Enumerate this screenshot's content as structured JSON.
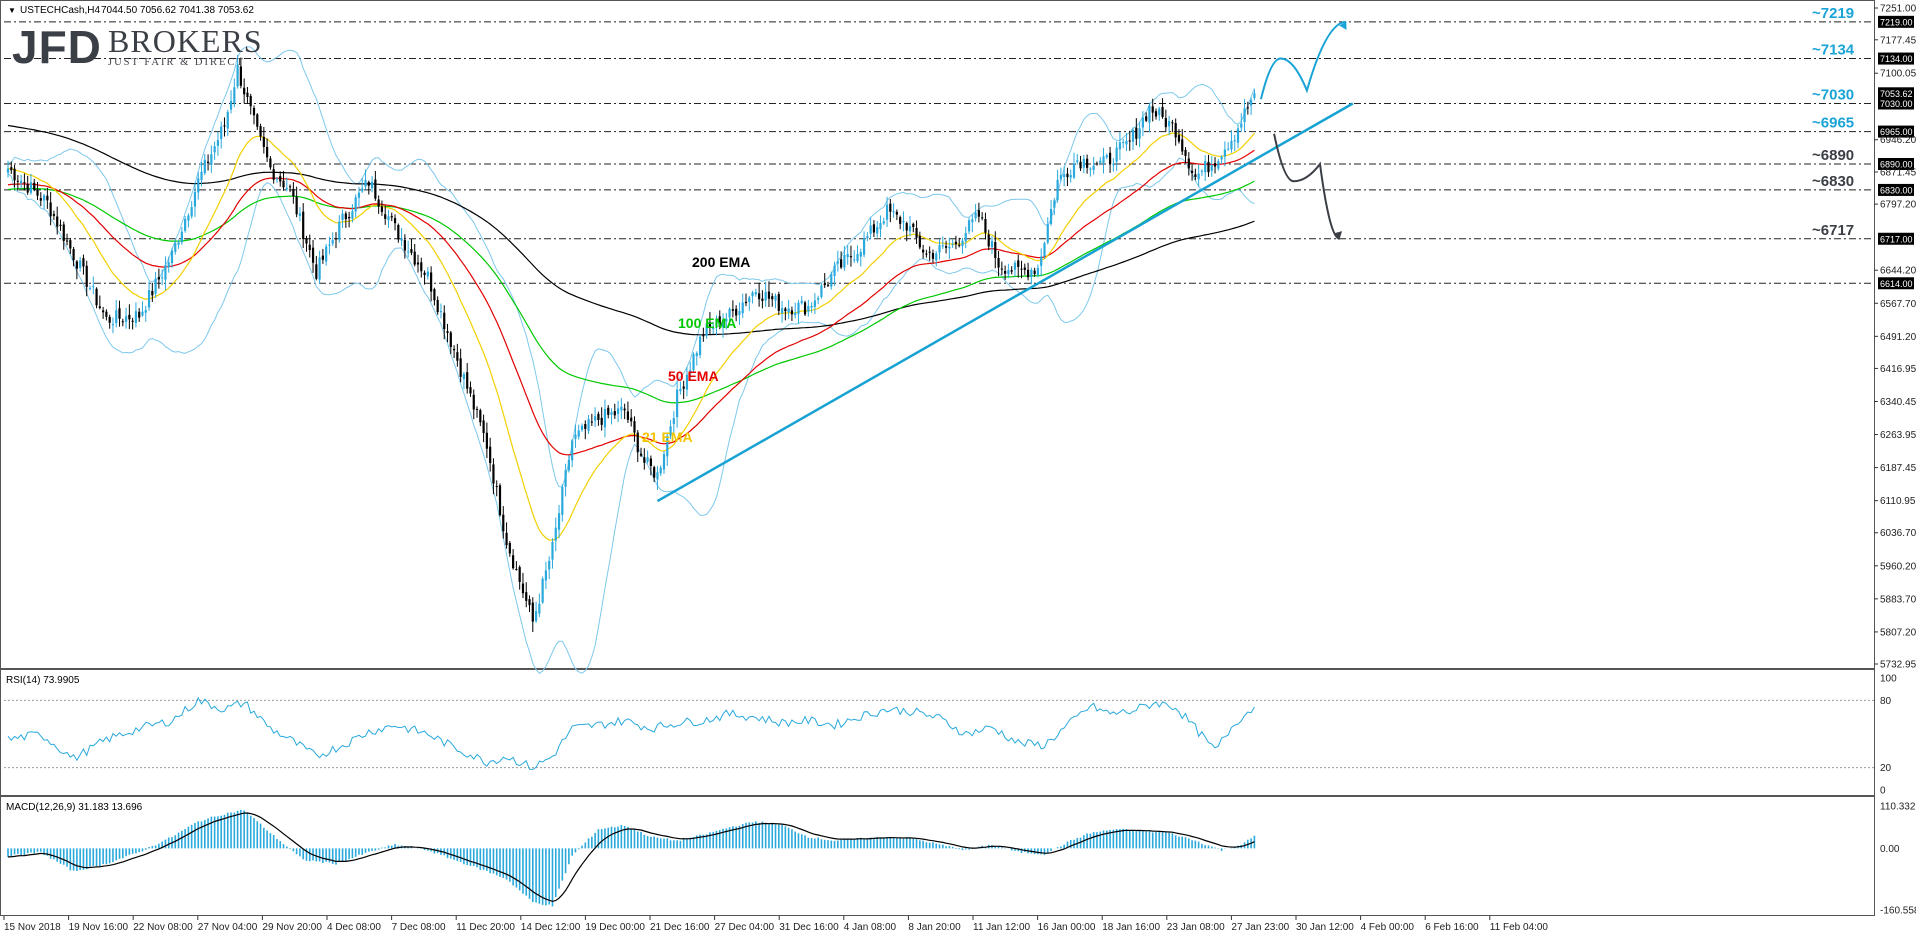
{
  "header": {
    "symbol_text": "USTECHCash,H4",
    "ohlc_text": "7044.50 7056.62 7041.38 7053.62"
  },
  "logo": {
    "brand": "JFD",
    "brand2": "BROKERS",
    "tagline": "JUST FAIR & DIRECT"
  },
  "colors": {
    "candle_up": "#29a9dc",
    "candle_down": "#000000",
    "ema21": "#f2d000",
    "ema50": "#e30000",
    "ema100": "#00c800",
    "ema200": "#000000",
    "bollinger": "#7ec8ec",
    "trendline": "#17a2d3",
    "level_blue": "#1aa3d6",
    "level_dark": "#3b3f46"
  },
  "chart_data": [
    {
      "type": "candlestick",
      "title": "USTECHCash,H4",
      "ylim": [
        5732.95,
        7251.0
      ],
      "y_ticks": [
        "7251.00",
        "7219.00",
        "7177.45",
        "7134.00",
        "7100.05",
        "7053.62",
        "7030.00",
        "6965.00",
        "6946.20",
        "6890.00",
        "6871.45",
        "6830.00",
        "6797.20",
        "6717.00",
        "6644.20",
        "6614.00",
        "6567.70",
        "6491.20",
        "6416.95",
        "6340.45",
        "6263.95",
        "6187.45",
        "6110.95",
        "6036.70",
        "5960.20",
        "5883.70",
        "5807.20",
        "5732.95"
      ],
      "x_labels": [
        "15 Nov 2018",
        "19 Nov 16:00",
        "22 Nov 08:00",
        "27 Nov 04:00",
        "29 Nov 20:00",
        "4 Dec 08:00",
        "7 Dec 08:00",
        "11 Dec 20:00",
        "14 Dec 12:00",
        "19 Dec 00:00",
        "21 Dec 16:00",
        "27 Dec 04:00",
        "31 Dec 16:00",
        "4 Jan 08:00",
        "8 Jan 20:00",
        "11 Jan 12:00",
        "16 Jan 00:00",
        "18 Jan 16:00",
        "23 Jan 08:00",
        "27 Jan 23:00",
        "30 Jan 12:00",
        "4 Feb 00:00",
        "6 Feb 16:00",
        "11 Feb 04:00"
      ],
      "price_anchors": [
        [
          0,
          6880
        ],
        [
          12,
          6800
        ],
        [
          22,
          6650
        ],
        [
          30,
          6530
        ],
        [
          40,
          6540
        ],
        [
          50,
          6680
        ],
        [
          58,
          6850
        ],
        [
          66,
          6980
        ],
        [
          70,
          7110
        ],
        [
          76,
          6960
        ],
        [
          80,
          6880
        ],
        [
          86,
          6830
        ],
        [
          94,
          6640
        ],
        [
          102,
          6760
        ],
        [
          110,
          6850
        ],
        [
          118,
          6740
        ],
        [
          128,
          6630
        ],
        [
          136,
          6460
        ],
        [
          146,
          6240
        ],
        [
          152,
          6020
        ],
        [
          160,
          5830
        ],
        [
          166,
          6000
        ],
        [
          172,
          6250
        ],
        [
          180,
          6300
        ],
        [
          188,
          6320
        ],
        [
          194,
          6200
        ],
        [
          198,
          6170
        ],
        [
          204,
          6350
        ],
        [
          212,
          6500
        ],
        [
          220,
          6540
        ],
        [
          228,
          6600
        ],
        [
          236,
          6560
        ],
        [
          244,
          6560
        ],
        [
          252,
          6640
        ],
        [
          260,
          6700
        ],
        [
          268,
          6780
        ],
        [
          274,
          6750
        ],
        [
          280,
          6680
        ],
        [
          288,
          6700
        ],
        [
          296,
          6770
        ],
        [
          302,
          6660
        ],
        [
          308,
          6640
        ],
        [
          314,
          6650
        ],
        [
          320,
          6850
        ],
        [
          326,
          6900
        ],
        [
          334,
          6890
        ],
        [
          342,
          6940
        ],
        [
          348,
          7020
        ],
        [
          356,
          6970
        ],
        [
          362,
          6860
        ],
        [
          368,
          6900
        ],
        [
          374,
          6960
        ],
        [
          380,
          7053
        ]
      ],
      "levels": [
        {
          "label": "~7219",
          "value": 7219,
          "color": "blue",
          "axis_tag": "7219.00"
        },
        {
          "label": "~7134",
          "value": 7134,
          "color": "blue",
          "axis_tag": "7134.00"
        },
        {
          "label": "~7030",
          "value": 7030,
          "color": "blue",
          "axis_tag": "7030.00"
        },
        {
          "label": "~6965",
          "value": 6965,
          "color": "blue",
          "axis_tag": "6965.00"
        },
        {
          "label": "~6890",
          "value": 6890,
          "color": "dark",
          "axis_tag": "6890.00"
        },
        {
          "label": "~6830",
          "value": 6830,
          "color": "dark",
          "axis_tag": "6830.00"
        },
        {
          "label": "~6717",
          "value": 6717,
          "color": "dark",
          "axis_tag": "6717.00"
        },
        {
          "label": "",
          "value": 6614,
          "color": "dark",
          "axis_tag": "6614.00"
        }
      ],
      "current_price_tag": "7053.62",
      "ema_labels": [
        "200 EMA",
        "100 EMA",
        "50 EMA",
        "21 EMA"
      ],
      "trendline": {
        "from": [
          198,
          6110
        ],
        "to": [
          410,
          7030
        ]
      },
      "projection_up": {
        "points": [
          [
            382,
            7040
          ],
          [
            388,
            7134
          ],
          [
            396,
            7060
          ],
          [
            408,
            7219
          ]
        ]
      },
      "projection_down": {
        "points": [
          [
            386,
            6960
          ],
          [
            392,
            6850
          ],
          [
            400,
            6890
          ],
          [
            406,
            6717
          ]
        ]
      }
    },
    {
      "type": "line",
      "title": "RSI(14) 73.9905",
      "ylim": [
        0,
        100
      ],
      "y_ticks": [
        "100",
        "80",
        "20",
        "0"
      ],
      "levels": [
        80,
        20
      ],
      "anchors": [
        [
          0,
          45
        ],
        [
          10,
          50
        ],
        [
          20,
          28
        ],
        [
          30,
          45
        ],
        [
          40,
          55
        ],
        [
          50,
          62
        ],
        [
          58,
          80
        ],
        [
          66,
          72
        ],
        [
          72,
          78
        ],
        [
          80,
          55
        ],
        [
          86,
          45
        ],
        [
          94,
          30
        ],
        [
          102,
          40
        ],
        [
          110,
          52
        ],
        [
          118,
          58
        ],
        [
          128,
          50
        ],
        [
          136,
          38
        ],
        [
          146,
          25
        ],
        [
          152,
          30
        ],
        [
          160,
          20
        ],
        [
          166,
          30
        ],
        [
          172,
          55
        ],
        [
          180,
          58
        ],
        [
          188,
          62
        ],
        [
          196,
          55
        ],
        [
          204,
          60
        ],
        [
          212,
          62
        ],
        [
          220,
          68
        ],
        [
          228,
          65
        ],
        [
          236,
          60
        ],
        [
          244,
          62
        ],
        [
          252,
          58
        ],
        [
          260,
          66
        ],
        [
          268,
          72
        ],
        [
          276,
          70
        ],
        [
          284,
          64
        ],
        [
          292,
          50
        ],
        [
          300,
          56
        ],
        [
          308,
          42
        ],
        [
          316,
          40
        ],
        [
          324,
          60
        ],
        [
          330,
          75
        ],
        [
          336,
          68
        ],
        [
          342,
          70
        ],
        [
          350,
          78
        ],
        [
          356,
          74
        ],
        [
          362,
          55
        ],
        [
          368,
          35
        ],
        [
          374,
          60
        ],
        [
          380,
          74
        ]
      ]
    },
    {
      "type": "histogram",
      "title": "MACD(12,26,9) 31.183 13.696",
      "ylim": [
        -160.558,
        110.332
      ],
      "y_ticks": [
        "110.332",
        "0.00",
        "-160.558"
      ],
      "anchors": [
        [
          0,
          -20
        ],
        [
          10,
          -10
        ],
        [
          20,
          -60
        ],
        [
          30,
          -40
        ],
        [
          40,
          -10
        ],
        [
          50,
          30
        ],
        [
          58,
          70
        ],
        [
          66,
          90
        ],
        [
          72,
          100
        ],
        [
          80,
          40
        ],
        [
          90,
          -30
        ],
        [
          100,
          -40
        ],
        [
          110,
          -10
        ],
        [
          118,
          10
        ],
        [
          128,
          -5
        ],
        [
          136,
          -30
        ],
        [
          146,
          -60
        ],
        [
          152,
          -80
        ],
        [
          160,
          -140
        ],
        [
          166,
          -150
        ],
        [
          172,
          -20
        ],
        [
          180,
          50
        ],
        [
          188,
          60
        ],
        [
          196,
          30
        ],
        [
          204,
          20
        ],
        [
          212,
          35
        ],
        [
          220,
          55
        ],
        [
          228,
          70
        ],
        [
          236,
          60
        ],
        [
          244,
          30
        ],
        [
          252,
          20
        ],
        [
          260,
          25
        ],
        [
          268,
          30
        ],
        [
          276,
          25
        ],
        [
          284,
          10
        ],
        [
          292,
          -5
        ],
        [
          300,
          10
        ],
        [
          308,
          -10
        ],
        [
          316,
          -15
        ],
        [
          324,
          20
        ],
        [
          330,
          40
        ],
        [
          338,
          50
        ],
        [
          346,
          45
        ],
        [
          354,
          40
        ],
        [
          362,
          20
        ],
        [
          370,
          -5
        ],
        [
          376,
          10
        ],
        [
          380,
          31
        ]
      ]
    }
  ]
}
